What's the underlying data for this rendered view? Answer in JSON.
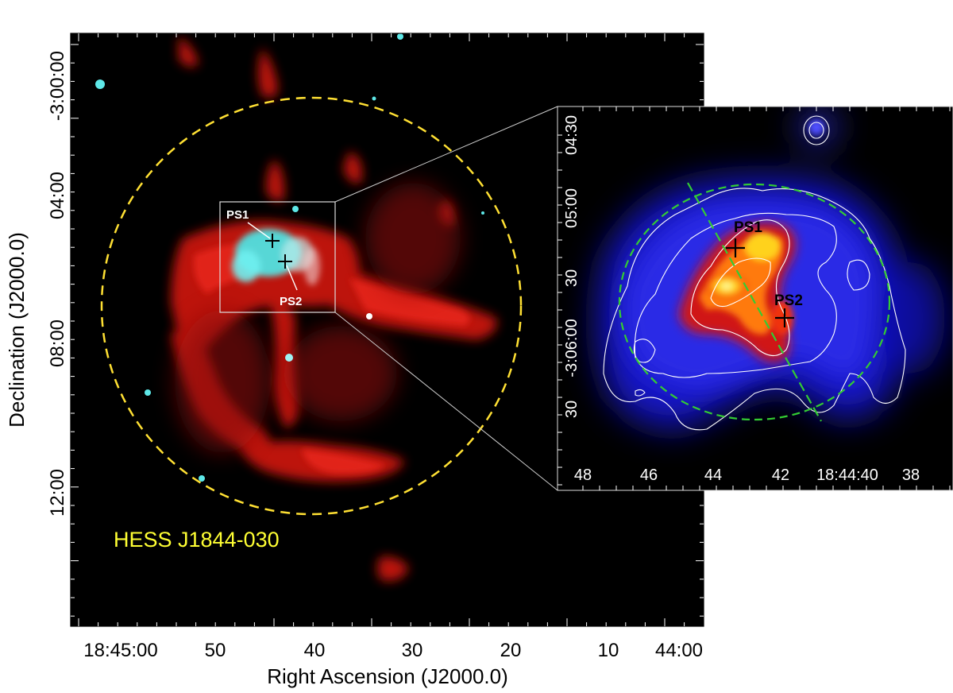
{
  "main_panel": {
    "source_label": "HESS J1844-030",
    "xlabel": "Right Ascension (J2000.0)",
    "ylabel": "Declination (J2000.0)",
    "x_ticks": [
      "18:45:00",
      "50",
      "40",
      "30",
      "20",
      "10",
      "44:00"
    ],
    "y_ticks": [
      "-3:00:00",
      "04:00",
      "08:00",
      "12:00"
    ],
    "markers": [
      {
        "id": "ps1",
        "label": "PS1"
      },
      {
        "id": "ps2",
        "label": "PS2"
      }
    ]
  },
  "inset_panel": {
    "x_ticks": [
      "48",
      "46",
      "44",
      "42",
      "18:44:40",
      "38"
    ],
    "y_ticks": [
      "04:30",
      "05:00",
      "30",
      "-3:06:00",
      "30"
    ],
    "markers": [
      {
        "id": "ps1",
        "label": "PS1"
      },
      {
        "id": "ps2",
        "label": "PS2"
      }
    ]
  },
  "colors": {
    "background": "#000000",
    "radio_emission": "#d21a10",
    "xray_emission": "#52e6e6",
    "hess_circle": "#ffe033",
    "source_label": "#ffff33",
    "inset_ellipse": "#33cc33",
    "contours": "#ffffff"
  }
}
